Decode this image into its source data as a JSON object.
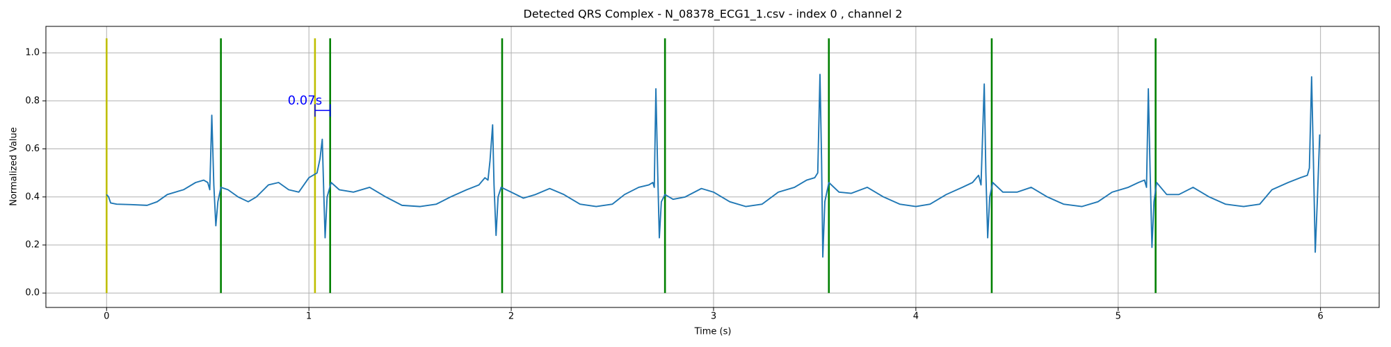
{
  "chart_data": {
    "type": "line",
    "title": "Detected QRS Complex - N_08378_ECG1_1.csv - index 0 , channel 2",
    "x_label": "Time (s)",
    "y_label": "Normalized Value",
    "xlim": [
      -0.3,
      6.29
    ],
    "ylim": [
      -0.06,
      1.11
    ],
    "xticks": [
      0,
      1,
      2,
      3,
      4,
      5,
      6
    ],
    "yticks": [
      {
        "value": 0,
        "label": "0.0"
      },
      0.2,
      0.4,
      0.6,
      0.8,
      {
        "value": 1,
        "label": "1.0"
      }
    ],
    "grid": true,
    "series": [
      {
        "color": "#1f77b4",
        "x": [
          0,
          0.01,
          0.02,
          0.05,
          0.12,
          0.2,
          0.25,
          0.3,
          0.38,
          0.44,
          0.48,
          0.5,
          0.51,
          0.52,
          0.53,
          0.54,
          0.55,
          0.565,
          0.6,
          0.65,
          0.7,
          0.74,
          0.8,
          0.85,
          0.9,
          0.95,
          1.0,
          1.04,
          1.055,
          1.066,
          1.074,
          1.08,
          1.09,
          1.11,
          1.15,
          1.22,
          1.3,
          1.38,
          1.46,
          1.55,
          1.63,
          1.7,
          1.78,
          1.84,
          1.87,
          1.885,
          1.895,
          1.908,
          1.915,
          1.925,
          1.935,
          1.95,
          2.0,
          2.06,
          2.12,
          2.19,
          2.26,
          2.34,
          2.42,
          2.5,
          2.56,
          2.63,
          2.68,
          2.7,
          2.707,
          2.715,
          2.724,
          2.732,
          2.742,
          2.76,
          2.8,
          2.86,
          2.94,
          3.0,
          3.08,
          3.16,
          3.24,
          3.32,
          3.4,
          3.46,
          3.5,
          3.515,
          3.526,
          3.534,
          3.54,
          3.55,
          3.57,
          3.62,
          3.68,
          3.76,
          3.84,
          3.92,
          4.0,
          4.07,
          4.15,
          4.23,
          4.28,
          4.31,
          4.322,
          4.338,
          4.346,
          4.355,
          4.365,
          4.38,
          4.43,
          4.5,
          4.57,
          4.65,
          4.73,
          4.82,
          4.9,
          4.97,
          5.05,
          5.1,
          5.13,
          5.14,
          5.149,
          5.158,
          5.167,
          5.177,
          5.19,
          5.24,
          5.3,
          5.37,
          5.45,
          5.53,
          5.62,
          5.7,
          5.76,
          5.84,
          5.9,
          5.935,
          5.945,
          5.956,
          5.965,
          5.974,
          5.985,
          5.996
        ],
        "values": [
          0.41,
          0.4,
          0.375,
          0.37,
          0.368,
          0.365,
          0.38,
          0.41,
          0.43,
          0.46,
          0.47,
          0.46,
          0.43,
          0.74,
          0.45,
          0.28,
          0.38,
          0.44,
          0.43,
          0.4,
          0.38,
          0.4,
          0.45,
          0.46,
          0.43,
          0.42,
          0.48,
          0.5,
          0.56,
          0.64,
          0.4,
          0.23,
          0.4,
          0.46,
          0.43,
          0.42,
          0.44,
          0.4,
          0.365,
          0.36,
          0.37,
          0.4,
          0.43,
          0.45,
          0.48,
          0.47,
          0.55,
          0.7,
          0.45,
          0.24,
          0.4,
          0.44,
          0.42,
          0.395,
          0.41,
          0.435,
          0.41,
          0.37,
          0.36,
          0.37,
          0.41,
          0.44,
          0.45,
          0.46,
          0.44,
          0.85,
          0.5,
          0.23,
          0.38,
          0.41,
          0.39,
          0.4,
          0.435,
          0.42,
          0.38,
          0.36,
          0.37,
          0.42,
          0.44,
          0.47,
          0.48,
          0.5,
          0.91,
          0.55,
          0.15,
          0.38,
          0.46,
          0.42,
          0.415,
          0.44,
          0.4,
          0.37,
          0.36,
          0.37,
          0.41,
          0.44,
          0.46,
          0.49,
          0.45,
          0.87,
          0.5,
          0.23,
          0.4,
          0.46,
          0.42,
          0.42,
          0.44,
          0.4,
          0.37,
          0.36,
          0.38,
          0.42,
          0.44,
          0.46,
          0.47,
          0.44,
          0.85,
          0.5,
          0.19,
          0.38,
          0.46,
          0.41,
          0.41,
          0.44,
          0.4,
          0.37,
          0.36,
          0.37,
          0.43,
          0.46,
          0.48,
          0.49,
          0.52,
          0.9,
          0.55,
          0.17,
          0.4,
          0.66
        ]
      }
    ],
    "vline_range": [
      0,
      1.06
    ],
    "reference_lines": {
      "color": "#bfbf00",
      "x": [
        0,
        1.03
      ]
    },
    "detected_lines": {
      "color": "#008000",
      "x": [
        0.565,
        1.105,
        1.955,
        2.76,
        3.57,
        4.375,
        5.185
      ]
    },
    "annotation": {
      "text": "0.07s",
      "color": "#0000ff",
      "x": 0.98,
      "y": 0.8,
      "span": [
        1.03,
        1.105
      ],
      "span_y": 0.76
    }
  }
}
